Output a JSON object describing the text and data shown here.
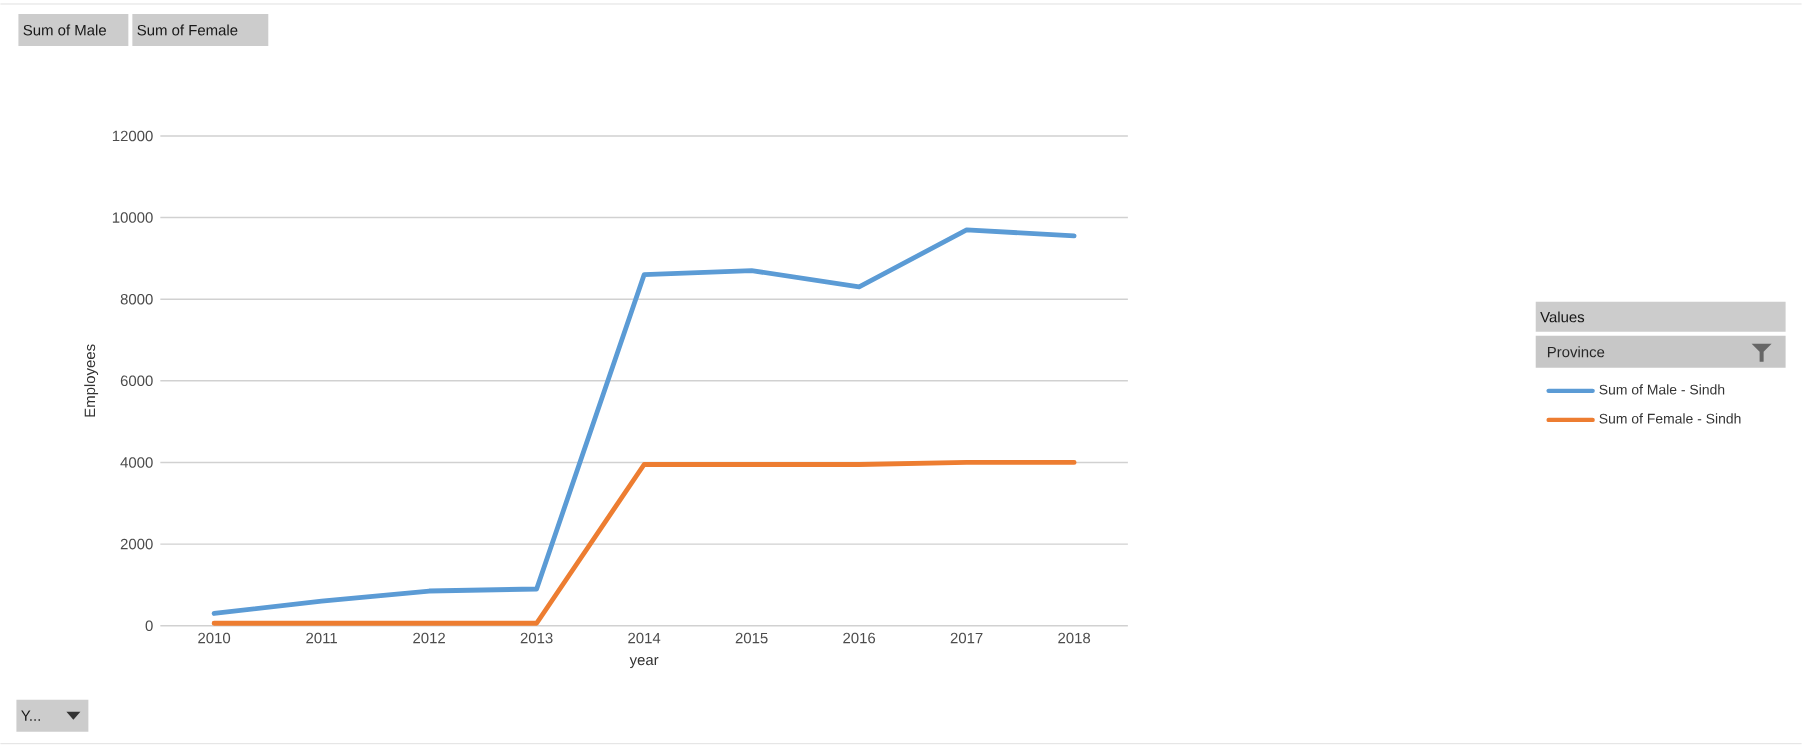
{
  "chart_data": {
    "type": "line",
    "xlabel": "year",
    "ylabel": "Employees",
    "legend_title": "Province",
    "categories": [
      "2010",
      "2011",
      "2012",
      "2013",
      "2014",
      "2015",
      "2016",
      "2017",
      "2018"
    ],
    "series": [
      {
        "name": "Sum of Male - Sindh",
        "color": "#5b9bd5",
        "values": [
          300,
          600,
          850,
          900,
          8600,
          8700,
          8300,
          9700,
          9550
        ]
      },
      {
        "name": "Sum of Female - Sindh",
        "color": "#ed7d31",
        "values": [
          60,
          60,
          60,
          60,
          3950,
          3950,
          3950,
          4000,
          4000
        ]
      }
    ],
    "ylim": [
      0,
      12000
    ],
    "yticks": [
      0,
      2000,
      4000,
      6000,
      8000,
      10000,
      12000
    ],
    "grid": "y",
    "legend": "right",
    "marker": "none",
    "line_style": "solid",
    "annotations": [
      "Sum of Male",
      "Sum of Female",
      "Values",
      "Y..."
    ]
  }
}
